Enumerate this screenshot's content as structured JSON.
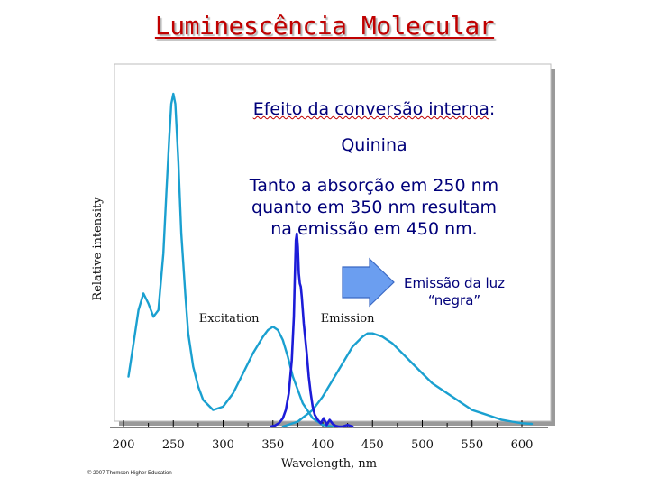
{
  "slide_title": "Luminescência Molecular",
  "annotation": {
    "heading_underlined": "Efeito da conversão interna",
    "heading_suffix": ":",
    "sample": "Quinina",
    "description_lines": [
      "Tanto a absorção em 250 nm",
      "quanto em 350 nm resultam",
      "na emissão em 450 nm."
    ],
    "arrow_label_lines": [
      "Emissão da luz",
      "“negra”"
    ]
  },
  "copyright": "© 2007 Thomson Higher Education",
  "colors": {
    "title": "#c00000",
    "annotation_text": "#00007a",
    "excitation_curve": "#1aa0d0",
    "emission_curve": "#1aa0d0",
    "measured_curve": "#1c1cd8",
    "arrow": "#6b9ef0"
  },
  "chart_data": {
    "type": "line",
    "xlabel": "Wavelength, nm",
    "ylabel": "Relative intensity",
    "xlim": [
      180,
      610
    ],
    "ylim": [
      0,
      1
    ],
    "x_ticks": [
      200,
      250,
      300,
      350,
      400,
      450,
      500,
      550,
      600
    ],
    "grid": false,
    "series": [
      {
        "name": "Excitation",
        "x": [
          205,
          210,
          215,
          220,
          225,
          230,
          235,
          240,
          243,
          246,
          248,
          250,
          252,
          255,
          258,
          262,
          265,
          270,
          275,
          280,
          290,
          300,
          310,
          320,
          330,
          340,
          345,
          350,
          355,
          360,
          365,
          370,
          380,
          390,
          400,
          410
        ],
        "y": [
          0.15,
          0.25,
          0.35,
          0.4,
          0.37,
          0.33,
          0.35,
          0.52,
          0.7,
          0.87,
          0.97,
          1.0,
          0.97,
          0.8,
          0.58,
          0.4,
          0.28,
          0.18,
          0.12,
          0.08,
          0.05,
          0.06,
          0.1,
          0.16,
          0.22,
          0.27,
          0.29,
          0.3,
          0.29,
          0.26,
          0.21,
          0.15,
          0.07,
          0.025,
          0.005,
          0
        ]
      },
      {
        "name": "Emission",
        "x": [
          360,
          375,
          390,
          400,
          410,
          420,
          430,
          440,
          445,
          450,
          455,
          460,
          470,
          480,
          490,
          500,
          510,
          520,
          530,
          540,
          550,
          560,
          570,
          580,
          590,
          600,
          610
        ],
        "y": [
          0,
          0.015,
          0.05,
          0.09,
          0.14,
          0.19,
          0.24,
          0.27,
          0.28,
          0.28,
          0.275,
          0.27,
          0.25,
          0.22,
          0.19,
          0.16,
          0.13,
          0.11,
          0.09,
          0.07,
          0.05,
          0.04,
          0.03,
          0.02,
          0.015,
          0.01,
          0.008
        ]
      },
      {
        "x": [
          348,
          352,
          356,
          360,
          363,
          366,
          369,
          371,
          372,
          373,
          374,
          375,
          376,
          377,
          378,
          379,
          380,
          381,
          382,
          384,
          386,
          388,
          390,
          392,
          395,
          398,
          401,
          404,
          407,
          410,
          413,
          416,
          420,
          425,
          430
        ],
        "y": [
          0,
          0.003,
          0.01,
          0.025,
          0.05,
          0.1,
          0.2,
          0.33,
          0.45,
          0.56,
          0.58,
          0.54,
          0.46,
          0.43,
          0.42,
          0.39,
          0.35,
          0.31,
          0.28,
          0.22,
          0.15,
          0.1,
          0.06,
          0.035,
          0.02,
          0.01,
          0.025,
          0.005,
          0.02,
          0.008,
          0.002,
          0,
          0,
          0.005,
          0
        ]
      }
    ],
    "labels": [
      {
        "text": "Excitation",
        "x": 306,
        "y": 0.315
      },
      {
        "text": "Emission",
        "x": 425,
        "y": 0.315
      }
    ]
  }
}
